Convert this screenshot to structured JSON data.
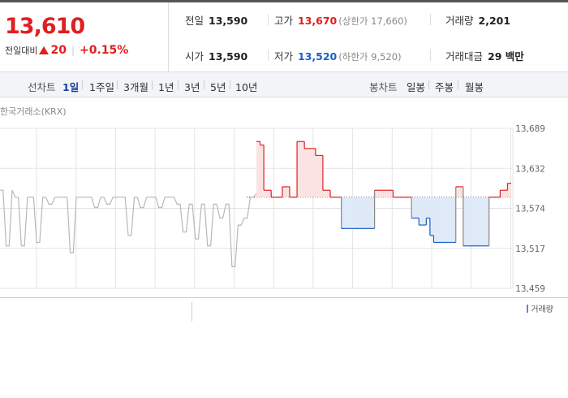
{
  "quote": {
    "price": "13,610",
    "change_label": "전일대비",
    "change_value": "20",
    "change_pct": "+0.15%",
    "stats": {
      "prev_close": {
        "label": "전일",
        "value": "13,590"
      },
      "high": {
        "label": "고가",
        "value": "13,670",
        "sub": "(상한가 17,660)"
      },
      "volume": {
        "label": "거래량",
        "value": "2,201"
      },
      "open": {
        "label": "시가",
        "value": "13,590"
      },
      "low": {
        "label": "저가",
        "value": "13,520",
        "sub": "(하한가 9,520)"
      },
      "turnover": {
        "label": "거래대금",
        "value": "29 백만"
      }
    }
  },
  "tabs": {
    "line_label": "선차트",
    "line_items": [
      "1일",
      "1주일",
      "3개월",
      "1년",
      "3년",
      "5년",
      "10년"
    ],
    "candle_label": "봉차트",
    "candle_items": [
      "일봉",
      "주봉",
      "월봉"
    ]
  },
  "chart_data": {
    "type": "line",
    "source_label": "한국거래소(KRX)",
    "y_ticks": [
      "13,689",
      "13,632",
      "13,574",
      "13,517",
      "13,459"
    ],
    "ylim": [
      13459,
      13689
    ],
    "baseline": 13590,
    "colors": {
      "up": "#e01f1f",
      "down": "#1a5fc6",
      "prev_day": "#b8b8b8",
      "baseline": "#333333"
    },
    "prev_day_series": [
      13600,
      13600,
      13520,
      13520,
      13600,
      13590,
      13590,
      13520,
      13520,
      13590,
      13590,
      13590,
      13525,
      13525,
      13590,
      13590,
      13580,
      13580,
      13590,
      13590,
      13590,
      13590,
      13590,
      13510,
      13510,
      13590,
      13590,
      13590,
      13590,
      13590,
      13590,
      13575,
      13575,
      13590,
      13590,
      13580,
      13580,
      13590,
      13590,
      13590,
      13590,
      13590,
      13535,
      13535,
      13590,
      13590,
      13575,
      13575,
      13590,
      13590,
      13590,
      13590,
      13575,
      13575,
      13590,
      13590,
      13590,
      13590,
      13580,
      13580,
      13540,
      13540,
      13580,
      13580,
      13530,
      13530,
      13580,
      13580,
      13520,
      13520,
      13580,
      13580,
      13560,
      13560,
      13580,
      13580,
      13490,
      13490,
      13550,
      13550,
      13560,
      13560,
      13590,
      13590,
      13595
    ],
    "today_series": [
      13670,
      13665,
      13600,
      13600,
      13590,
      13590,
      13590,
      13605,
      13605,
      13590,
      13590,
      13670,
      13670,
      13660,
      13660,
      13660,
      13650,
      13650,
      13600,
      13600,
      13590,
      13590,
      13590,
      13545,
      13545,
      13545,
      13545,
      13545,
      13545,
      13545,
      13545,
      13545,
      13600,
      13600,
      13600,
      13600,
      13600,
      13590,
      13590,
      13590,
      13590,
      13590,
      13560,
      13560,
      13550,
      13550,
      13560,
      13535,
      13525,
      13525,
      13525,
      13525,
      13525,
      13525,
      13605,
      13605,
      13520,
      13520,
      13520,
      13520,
      13520,
      13520,
      13520,
      13590,
      13590,
      13590,
      13600,
      13600,
      13610,
      13610
    ],
    "volume_label": "거래량"
  }
}
